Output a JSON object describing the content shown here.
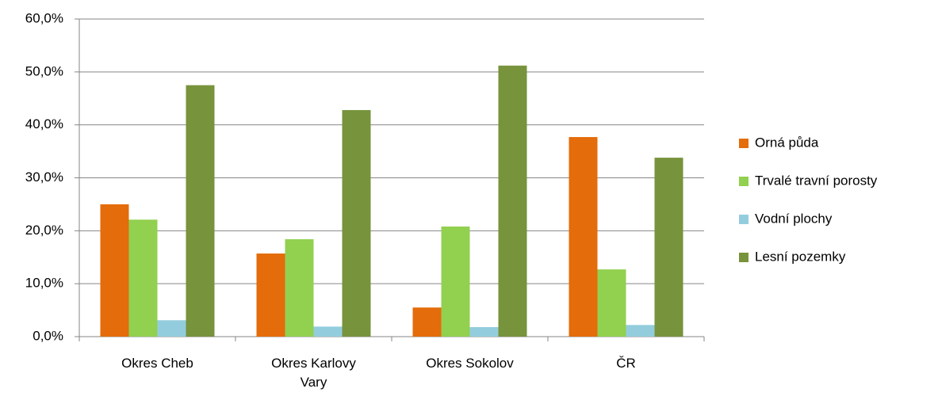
{
  "chart_data": {
    "type": "bar",
    "categories": [
      "Okres Cheb",
      "Okres Karlovy Vary",
      "Okres Sokolov",
      "ČR"
    ],
    "series": [
      {
        "name": "Orná půda",
        "color": "#e46c0a",
        "values": [
          25.0,
          15.7,
          5.5,
          37.7
        ]
      },
      {
        "name": "Trvalé travní porosty",
        "color": "#92d050",
        "values": [
          22.1,
          18.4,
          20.8,
          12.7
        ]
      },
      {
        "name": "Vodní plochy",
        "color": "#93cddd",
        "values": [
          3.1,
          1.9,
          1.8,
          2.2
        ]
      },
      {
        "name": "Lesní pozemky",
        "color": "#77933c",
        "values": [
          47.5,
          42.8,
          51.2,
          33.8
        ]
      }
    ],
    "ylim": [
      0,
      60
    ],
    "yticks": [
      {
        "value": 0,
        "label": "0,0%"
      },
      {
        "value": 10,
        "label": "10,0%"
      },
      {
        "value": 20,
        "label": "20,0%"
      },
      {
        "value": 30,
        "label": "30,0%"
      },
      {
        "value": 40,
        "label": "40,0%"
      },
      {
        "value": 50,
        "label": "50,0%"
      },
      {
        "value": 60,
        "label": "60,0%"
      }
    ],
    "grid": true,
    "legend": "right"
  }
}
